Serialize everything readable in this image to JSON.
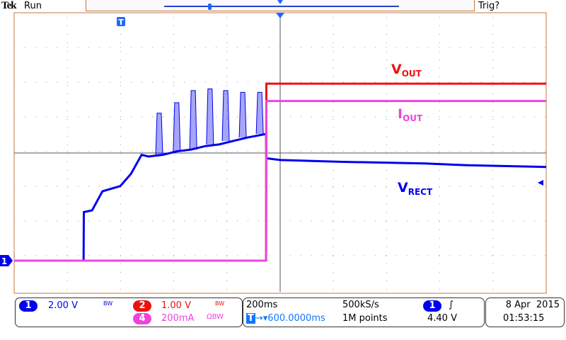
{
  "header": {
    "brand": "Tek",
    "state": "Run",
    "trigger_status": "Trig?"
  },
  "colors": {
    "ch1": "#0000ee",
    "ch2": "#ee1111",
    "ch4": "#ee44dd",
    "grid": "#9a9aaa",
    "frame": "#c07a40"
  },
  "channels": {
    "ch1": {
      "number": "1",
      "scale": "2.00 V",
      "bw": "BW"
    },
    "ch2": {
      "number": "2",
      "scale": "1.00 V",
      "bw": "BW"
    },
    "ch4": {
      "number": "4",
      "scale": "200mA",
      "bw": "ΩBW"
    }
  },
  "timebase": {
    "scale": "200ms",
    "sample_rate": "500kS/s",
    "position": "600.0000ms",
    "record": "1M points"
  },
  "trigger": {
    "source": "1",
    "slope": "rising",
    "level": "4.40 V"
  },
  "datetime": {
    "date": "8 Apr  2015",
    "time": "01:53:15"
  },
  "trace_labels": {
    "vout_main": "V",
    "vout_sub": "OUT",
    "iout_main": "I",
    "iout_sub": "OUT",
    "vrect_main": "V",
    "vrect_sub": "RECT"
  },
  "chart_data": {
    "type": "line",
    "x_unit": "ms",
    "xlim": [
      -1000,
      1000
    ],
    "x_div": 200,
    "grid": true,
    "series": [
      {
        "name": "VRECT",
        "channel": "ch1",
        "unit": "V",
        "per_div": 2,
        "t": [
          -1000,
          -739,
          -738,
          -707,
          -668,
          -601,
          -561,
          -521,
          -495,
          -441,
          -388,
          -335,
          -282,
          -229,
          -176,
          -122,
          -53,
          -52,
          0,
          223,
          543,
          702,
          1000
        ],
        "v": [
          0,
          0,
          2.8,
          2.9,
          4.0,
          4.3,
          5.0,
          6.1,
          6.0,
          6.1,
          6.3,
          6.4,
          6.6,
          6.7,
          6.9,
          7.1,
          7.3,
          5.9,
          5.8,
          5.7,
          5.6,
          5.5,
          5.4
        ],
        "spikes_t": [
          -468,
          -402,
          -340,
          -277,
          -218,
          -154,
          -90
        ],
        "spikes_v": [
          8.5,
          9.1,
          9.8,
          9.9,
          9.8,
          9.7,
          9.7
        ]
      },
      {
        "name": "VOUT",
        "channel": "ch2",
        "unit": "V",
        "per_div": 1,
        "t": [
          -1000,
          -53,
          -52,
          1000
        ],
        "v": [
          0,
          0,
          5.1,
          5.1
        ]
      },
      {
        "name": "IOUT",
        "channel": "ch4",
        "unit": "A",
        "per_div": 0.2,
        "t": [
          -1000,
          -53,
          -52,
          1000
        ],
        "v": [
          0,
          0,
          0.92,
          0.92
        ]
      }
    ]
  }
}
